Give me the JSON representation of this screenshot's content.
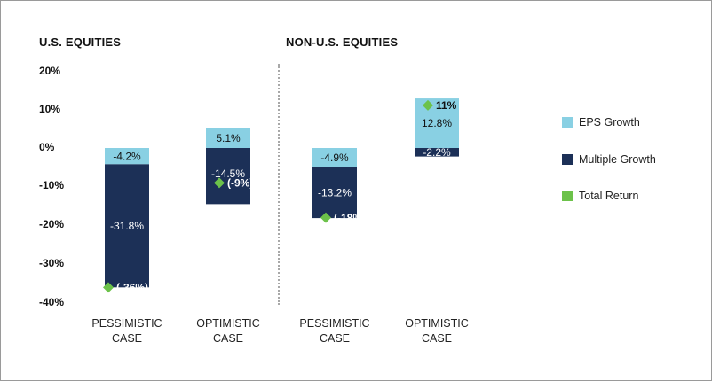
{
  "colors": {
    "eps": "#89d0e3",
    "multiple": "#1c3057",
    "total": "#6cc24a",
    "text_dark": "#111111",
    "text_light": "#ffffff"
  },
  "legend": [
    {
      "label": "EPS Growth",
      "color": "#89d0e3",
      "marker": "square"
    },
    {
      "label": "Multiple Growth",
      "color": "#1c3057",
      "marker": "square"
    },
    {
      "label": "Total Return",
      "color": "#6cc24a",
      "marker": "diamond"
    }
  ],
  "chart_data": {
    "type": "bar",
    "stacked": true,
    "y_ticks": [
      "20%",
      "10%",
      "0%",
      "-10%",
      "-20%",
      "-30%",
      "-40%"
    ],
    "ylim": [
      -40,
      20
    ],
    "legend_position": "right",
    "grid": false,
    "panels": [
      {
        "title": "U.S. EQUITIES",
        "categories": [
          [
            "PESSIMISTIC",
            "CASE"
          ],
          [
            "OPTIMISTIC",
            "CASE"
          ]
        ],
        "eps_growth": [
          -4.2,
          5.1
        ],
        "multiple_growth": [
          -31.8,
          -14.5
        ],
        "total_return": [
          -36,
          -9
        ],
        "eps_labels": [
          "-4.2%",
          "5.1%"
        ],
        "multiple_labels": [
          "-31.8%",
          "-14.5%"
        ],
        "total_labels": [
          "(-36%)",
          "(-9%)"
        ]
      },
      {
        "title": "NON-U.S. EQUITIES",
        "categories": [
          [
            "PESSIMISTIC",
            "CASE"
          ],
          [
            "OPTIMISTIC",
            "CASE"
          ]
        ],
        "eps_growth": [
          -4.9,
          12.8
        ],
        "multiple_growth": [
          -13.2,
          -2.2
        ],
        "total_return": [
          -18,
          11
        ],
        "eps_labels": [
          "-4.9%",
          "12.8%"
        ],
        "multiple_labels": [
          "-13.2%",
          "-2.2%"
        ],
        "total_labels": [
          "(-18%)",
          "11%"
        ]
      }
    ]
  }
}
